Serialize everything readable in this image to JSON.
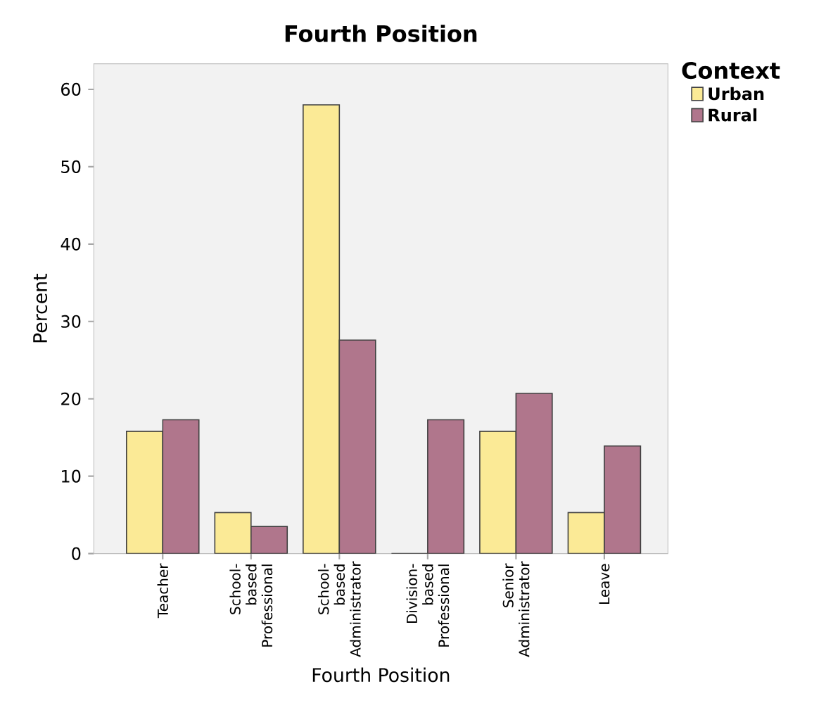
{
  "chart_data": {
    "type": "bar",
    "title": "Fourth Position",
    "xlabel": "Fourth Position",
    "ylabel": "Percent",
    "legend_title": "Context",
    "legend": "top right",
    "categories": [
      "Teacher",
      "School-based Professional",
      "School-based Administrator",
      "Division-based Professional",
      "Senior Administrator",
      "Leave"
    ],
    "series": [
      {
        "name": "Urban",
        "color": "#fbea96",
        "values": [
          15.8,
          5.3,
          58.0,
          0,
          15.8,
          5.3
        ]
      },
      {
        "name": "Rural",
        "color": "#b0768c",
        "values": [
          17.3,
          3.5,
          27.6,
          17.3,
          20.7,
          13.9
        ]
      }
    ],
    "ylim": [
      0,
      63.3
    ],
    "yticks": [
      0,
      10,
      20,
      30,
      40,
      50,
      60
    ],
    "grid": false
  }
}
